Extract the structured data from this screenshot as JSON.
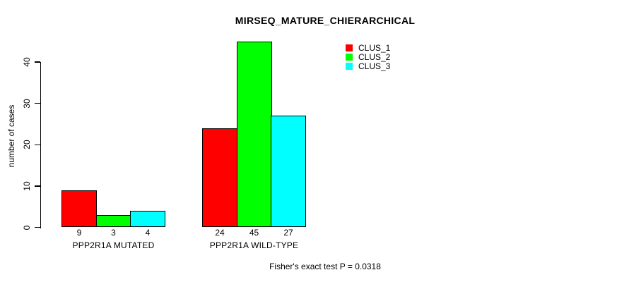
{
  "chart_data": {
    "type": "bar",
    "title": "MIRSEQ_MATURE_CHIERARCHICAL",
    "xlabel": "",
    "ylabel": "number of cases",
    "categories": [
      "PPP2R1A MUTATED",
      "PPP2R1A WILD-TYPE"
    ],
    "series": [
      {
        "name": "CLUS_1",
        "color": "#FF0000",
        "values": [
          9,
          24
        ]
      },
      {
        "name": "CLUS_2",
        "color": "#00FF00",
        "values": [
          3,
          45
        ]
      },
      {
        "name": "CLUS_3",
        "color": "#00FFFF",
        "values": [
          4,
          27
        ]
      }
    ],
    "bar_value_labels": [
      [
        9,
        3,
        4
      ],
      [
        24,
        45,
        27
      ]
    ],
    "y_ticks": [
      0,
      10,
      20,
      30,
      40
    ],
    "ylim": [
      0,
      45
    ],
    "grid": false,
    "legend_position": "top-right-inside",
    "legend": [
      "CLUS_1",
      "CLUS_2",
      "CLUS_3"
    ],
    "annotation": "Fisher's exact test P = 0.0318",
    "bar_border_color": "#000000",
    "background_color": "#FFFFFF"
  }
}
